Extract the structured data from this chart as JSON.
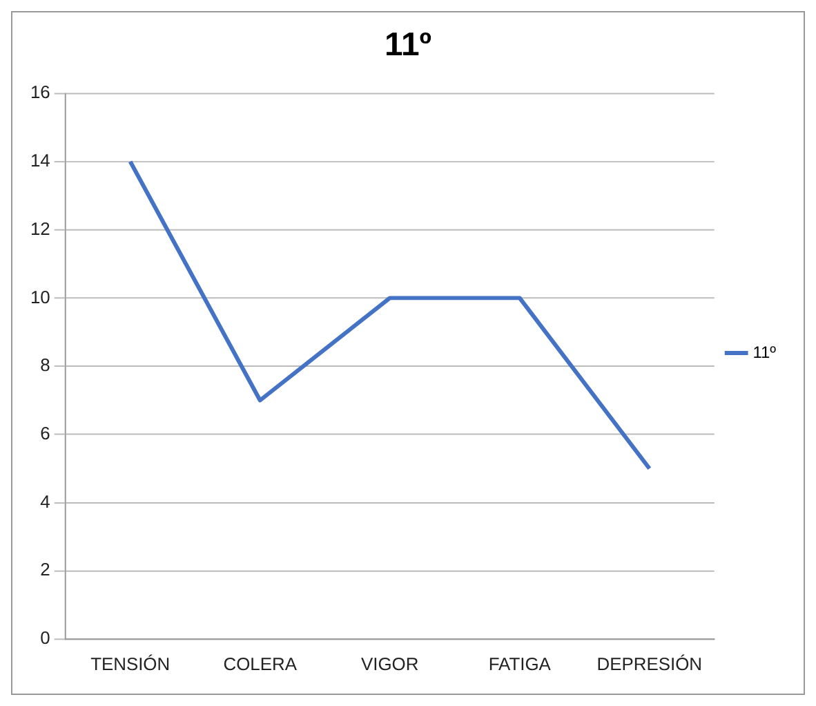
{
  "chart_data": {
    "type": "line",
    "title": "11º",
    "categories": [
      "TENSIÓN",
      "COLERA",
      "VIGOR",
      "FATIGA",
      "DEPRESIÓN"
    ],
    "series": [
      {
        "name": "11º",
        "color": "#4472c4",
        "values": [
          14,
          7,
          10,
          10,
          5
        ]
      }
    ],
    "ylim": [
      0,
      16
    ],
    "yticks": [
      0,
      2,
      4,
      6,
      8,
      10,
      12,
      14,
      16
    ],
    "grid": "y",
    "legend": "right",
    "marker": "none",
    "line_style": "solid"
  }
}
